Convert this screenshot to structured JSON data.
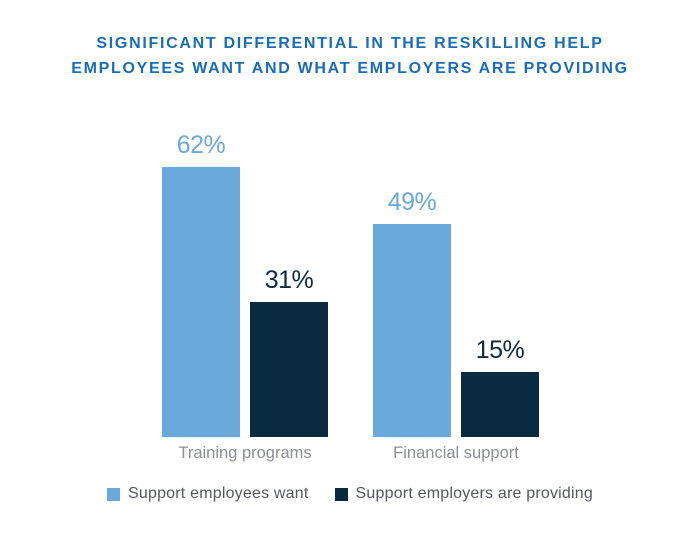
{
  "title": {
    "line1": "SIGNIFICANT DIFFERENTIAL IN THE RESKILLING HELP",
    "line2": "EMPLOYEES WANT AND WHAT EMPLOYERS ARE PROVIDING",
    "color": "#1A6CB5"
  },
  "chart_data": {
    "type": "bar",
    "title": "Significant differential in the reskilling help employees want and what employers are providing",
    "categories": [
      "Training programs",
      "Financial support"
    ],
    "series": [
      {
        "name": "Support employees want",
        "color": "#6BA9DC",
        "values": [
          62,
          49
        ],
        "labels": [
          "62%",
          "49%"
        ]
      },
      {
        "name": "Support employers are providing",
        "color": "#0A2A40",
        "values": [
          31,
          15
        ],
        "labels": [
          "31%",
          "15%"
        ]
      }
    ],
    "xlabel": "",
    "ylabel": "",
    "ylim": [
      0,
      65
    ],
    "grid": false,
    "axes_shown": false,
    "value_label_format": "percent",
    "legend_position": "bottom"
  },
  "legend": {
    "items": [
      {
        "label": "Support employees want",
        "color": "#6BA9DC"
      },
      {
        "label": "Support employers are providing",
        "color": "#0A2A40"
      }
    ]
  },
  "colors": {
    "background": "#FFFFFF",
    "title_text": "#1A6CB5",
    "category_label_text": "#8C8E97",
    "legend_text": "#55575F"
  }
}
